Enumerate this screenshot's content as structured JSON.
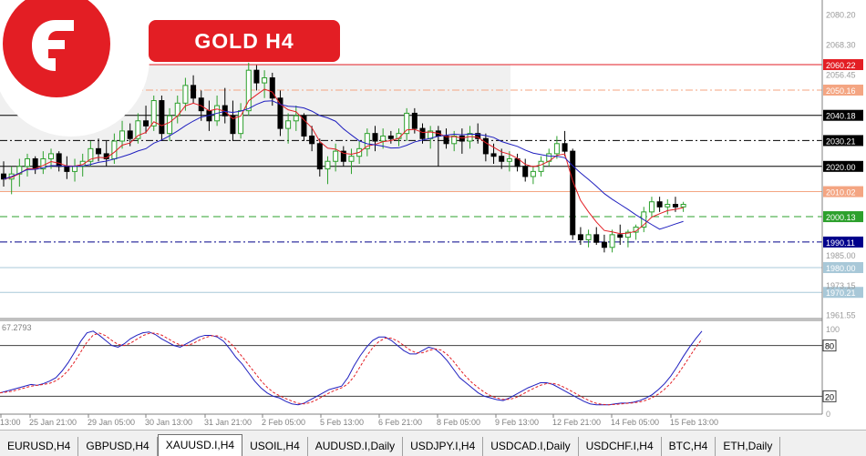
{
  "brand": {
    "title": "GOLD   H4",
    "accent": "#e31e24"
  },
  "chart_data": {
    "type": "candlestick",
    "symbol": "XAUUSD.I",
    "timeframe": "H4",
    "price_axis": {
      "range": [
        1956,
        2082
      ],
      "ticks": [
        "2080.20",
        "2068.30",
        "2056.45",
        "1985.00",
        "1973.15",
        "1961.55"
      ]
    },
    "levels": [
      {
        "value": 2060.22,
        "label": "2060.22",
        "color": "#e31e24",
        "style": "solid",
        "tag_bg": "#e31e24",
        "tag_fg": "#ffffff"
      },
      {
        "value": 2050.16,
        "label": "2050.16",
        "color": "#f4a582",
        "style": "dashdot",
        "tag_bg": "#f4a582",
        "tag_fg": "#ffffff"
      },
      {
        "value": 2040.18,
        "label": "2040.18",
        "color": "#000000",
        "style": "solid",
        "tag_bg": "#000000",
        "tag_fg": "#ffffff"
      },
      {
        "value": 2030.21,
        "label": "2030.21",
        "color": "#000000",
        "style": "dashdot",
        "tag_bg": "#000000",
        "tag_fg": "#ffffff"
      },
      {
        "value": 2020.0,
        "label": "2020.00",
        "color": "#000000",
        "style": "solid",
        "tag_bg": "#000000",
        "tag_fg": "#ffffff"
      },
      {
        "value": 2010.02,
        "label": "2010.02",
        "color": "#f4a582",
        "style": "solid",
        "tag_bg": "#f4a582",
        "tag_fg": "#ffffff"
      },
      {
        "value": 2000.13,
        "label": "2000.13",
        "color": "#2ca02c",
        "style": "dashed",
        "tag_bg": "#2ca02c",
        "tag_fg": "#ffffff"
      },
      {
        "value": 1990.11,
        "label": "1990.11",
        "color": "#00008b",
        "style": "dashdot",
        "tag_bg": "#00008b",
        "tag_fg": "#ffffff"
      },
      {
        "value": 1980.0,
        "label": "1980.00",
        "color": "#a8c8d8",
        "style": "solid",
        "tag_bg": "#a8c8d8",
        "tag_fg": "#ffffff"
      },
      {
        "value": 1970.21,
        "label": "1970.21",
        "color": "#a8c8d8",
        "style": "solid",
        "tag_bg": "#a8c8d8",
        "tag_fg": "#ffffff"
      }
    ],
    "range_box": {
      "from_value": 2010.02,
      "to_value": 2060.22,
      "color": "#f0f0f0"
    },
    "candles": [
      [
        2017,
        2022,
        2012,
        2015
      ],
      [
        2015,
        2020,
        2009,
        2017
      ],
      [
        2017,
        2023,
        2012,
        2020
      ],
      [
        2020,
        2025,
        2016,
        2023
      ],
      [
        2023,
        2024,
        2017,
        2019
      ],
      [
        2019,
        2026,
        2017,
        2023
      ],
      [
        2023,
        2027,
        2019,
        2025
      ],
      [
        2025,
        2026,
        2018,
        2020
      ],
      [
        2020,
        2024,
        2015,
        2018
      ],
      [
        2018,
        2023,
        2014,
        2020
      ],
      [
        2020,
        2025,
        2016,
        2022
      ],
      [
        2022,
        2030,
        2020,
        2027
      ],
      [
        2027,
        2031,
        2022,
        2025
      ],
      [
        2025,
        2030,
        2020,
        2023
      ],
      [
        2023,
        2033,
        2021,
        2030
      ],
      [
        2030,
        2038,
        2027,
        2034
      ],
      [
        2034,
        2037,
        2028,
        2031
      ],
      [
        2031,
        2041,
        2029,
        2038
      ],
      [
        2038,
        2044,
        2033,
        2036
      ],
      [
        2036,
        2048,
        2034,
        2046
      ],
      [
        2046,
        2048,
        2030,
        2033
      ],
      [
        2033,
        2043,
        2030,
        2040
      ],
      [
        2040,
        2048,
        2037,
        2045
      ],
      [
        2045,
        2055,
        2042,
        2052
      ],
      [
        2052,
        2056,
        2045,
        2047
      ],
      [
        2047,
        2050,
        2038,
        2042
      ],
      [
        2042,
        2046,
        2034,
        2038
      ],
      [
        2038,
        2048,
        2036,
        2044
      ],
      [
        2044,
        2051,
        2037,
        2040
      ],
      [
        2040,
        2046,
        2030,
        2033
      ],
      [
        2033,
        2045,
        2031,
        2042
      ],
      [
        2042,
        2061,
        2040,
        2058
      ],
      [
        2058,
        2060,
        2050,
        2053
      ],
      [
        2053,
        2058,
        2047,
        2055
      ],
      [
        2055,
        2057,
        2044,
        2047
      ],
      [
        2047,
        2050,
        2032,
        2035
      ],
      [
        2035,
        2041,
        2029,
        2038
      ],
      [
        2038,
        2044,
        2034,
        2040
      ],
      [
        2040,
        2041,
        2030,
        2032
      ],
      [
        2032,
        2036,
        2026,
        2029
      ],
      [
        2029,
        2031,
        2016,
        2019
      ],
      [
        2019,
        2024,
        2013,
        2022
      ],
      [
        2022,
        2029,
        2018,
        2026
      ],
      [
        2026,
        2028,
        2020,
        2022
      ],
      [
        2022,
        2027,
        2017,
        2024
      ],
      [
        2024,
        2030,
        2021,
        2027
      ],
      [
        2027,
        2035,
        2024,
        2033
      ],
      [
        2033,
        2036,
        2026,
        2030
      ],
      [
        2030,
        2035,
        2027,
        2032
      ],
      [
        2032,
        2034,
        2029,
        2031
      ],
      [
        2031,
        2035,
        2028,
        2033
      ],
      [
        2033,
        2043,
        2030,
        2041
      ],
      [
        2041,
        2043,
        2033,
        2035
      ],
      [
        2035,
        2037,
        2029,
        2031
      ],
      [
        2031,
        2036,
        2027,
        2034
      ],
      [
        2034,
        2036,
        2020,
        2032
      ],
      [
        2032,
        2035,
        2027,
        2029
      ],
      [
        2029,
        2034,
        2026,
        2032
      ],
      [
        2032,
        2035,
        2025,
        2030
      ],
      [
        2030,
        2036,
        2027,
        2033
      ],
      [
        2033,
        2037,
        2029,
        2031
      ],
      [
        2031,
        2033,
        2022,
        2025
      ],
      [
        2025,
        2029,
        2021,
        2024
      ],
      [
        2024,
        2027,
        2019,
        2022
      ],
      [
        2022,
        2026,
        2018,
        2023
      ],
      [
        2023,
        2025,
        2018,
        2020
      ],
      [
        2020,
        2023,
        2014,
        2016
      ],
      [
        2016,
        2020,
        2013,
        2018
      ],
      [
        2018,
        2024,
        2016,
        2022
      ],
      [
        2022,
        2027,
        2020,
        2025
      ],
      [
        2025,
        2032,
        2023,
        2029
      ],
      [
        2029,
        2034,
        2024,
        2026
      ],
      [
        2026,
        2027,
        1991,
        1993
      ],
      [
        1993,
        1996,
        1989,
        1991
      ],
      [
        1991,
        1995,
        1988,
        1993
      ],
      [
        1993,
        1996,
        1989,
        1990
      ],
      [
        1990,
        1993,
        1986,
        1988
      ],
      [
        1988,
        1995,
        1986,
        1993
      ],
      [
        1993,
        1997,
        1989,
        1992
      ],
      [
        1992,
        1995,
        1988,
        1994
      ],
      [
        1994,
        1997,
        1991,
        1996
      ],
      [
        1996,
        2004,
        1994,
        2002
      ],
      [
        2002,
        2008,
        2000,
        2006
      ],
      [
        2006,
        2008,
        2002,
        2004
      ],
      [
        2004,
        2007,
        2001,
        2005
      ],
      [
        2005,
        2008,
        2002,
        2004
      ],
      [
        2004,
        2006,
        2002,
        2005
      ]
    ],
    "ema_fast": {
      "color": "#e31e24"
    },
    "ma_slow": {
      "color": "#1f1fbf"
    },
    "x_axis": {
      "labels": [
        "13:00",
        "25 Jan 21:00",
        "29 Jan 05:00",
        "30 Jan 13:00",
        "31 Jan 21:00",
        "2 Feb 05:00",
        "5 Feb 13:00",
        "6 Feb 21:00",
        "8 Feb 05:00",
        "9 Feb 13:00",
        "12 Feb 21:00",
        "14 Feb 05:00",
        "15 Feb 13:00"
      ]
    },
    "oscillator": {
      "readout": "67.2793",
      "range": [
        0,
        100
      ],
      "levels": [
        80,
        20
      ],
      "level_labels": [
        "80",
        "20"
      ],
      "tick_labels": [
        "100",
        "0"
      ],
      "k_color": "#1f1fbf",
      "d_color": "#e31e24",
      "k": [
        24,
        26,
        28,
        30,
        32,
        34,
        33,
        35,
        38,
        42,
        50,
        60,
        72,
        85,
        95,
        97,
        92,
        86,
        80,
        78,
        82,
        88,
        92,
        95,
        96,
        93,
        88,
        84,
        80,
        78,
        82,
        86,
        90,
        92,
        92,
        90,
        85,
        76,
        66,
        58,
        48,
        38,
        30,
        24,
        20,
        18,
        14,
        11,
        10,
        12,
        16,
        20,
        24,
        28,
        30,
        32,
        42,
        56,
        68,
        78,
        86,
        90,
        90,
        86,
        80,
        74,
        70,
        70,
        74,
        78,
        76,
        70,
        62,
        52,
        42,
        36,
        30,
        24,
        20,
        18,
        16,
        15,
        18,
        22,
        26,
        30,
        33,
        36,
        36,
        34,
        30,
        26,
        22,
        18,
        14,
        11,
        10,
        10,
        10,
        11,
        12,
        12,
        13,
        15,
        18,
        22,
        28,
        35,
        44,
        55,
        67,
        78,
        88,
        97
      ]
    },
    "time_label": "13:00"
  },
  "tabs": [
    {
      "label": "EURUSD,H4",
      "active": false
    },
    {
      "label": "GBPUSD,H4",
      "active": false
    },
    {
      "label": "XAUUSD.I,H4",
      "active": true
    },
    {
      "label": "USOIL,H4",
      "active": false
    },
    {
      "label": "AUDUSD.I,Daily",
      "active": false
    },
    {
      "label": "USDJPY.I,H4",
      "active": false
    },
    {
      "label": "USDCAD.I,Daily",
      "active": false
    },
    {
      "label": "USDCHF.I,H4",
      "active": false
    },
    {
      "label": "BTC,H4",
      "active": false
    },
    {
      "label": "ETH,Daily",
      "active": false
    }
  ]
}
